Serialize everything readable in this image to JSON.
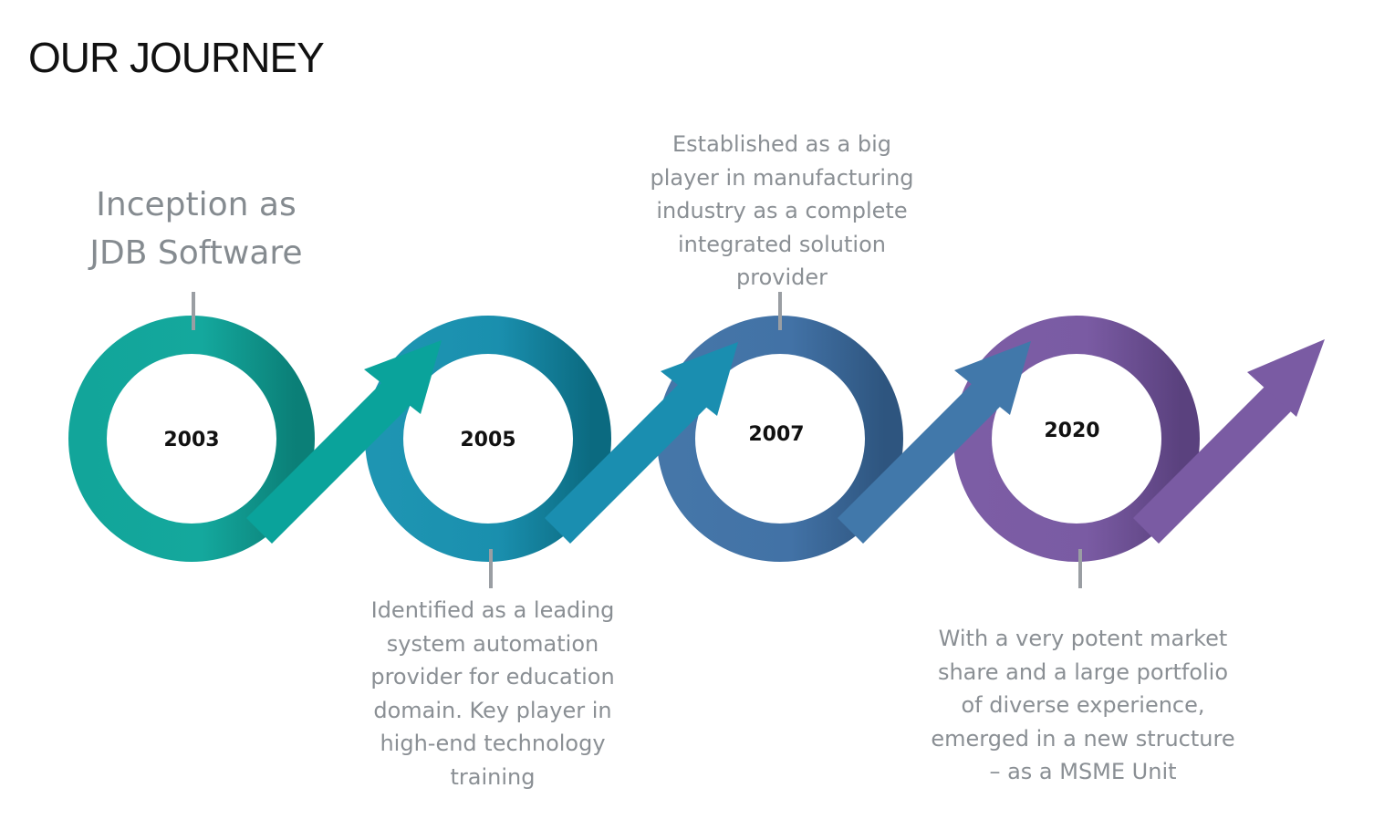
{
  "title": "OUR JOURNEY",
  "milestones": [
    {
      "year": "2003",
      "lines": [
        "Inception as",
        "JDB Software"
      ],
      "color": "#12A59A",
      "shade": "#0B7F77"
    },
    {
      "year": "2005",
      "lines": [
        "Identified as a leading",
        "system automation",
        "provider for education",
        "domain. Key player in",
        "high-end technology",
        "training"
      ],
      "color": "#1D8FAF",
      "shade": "#0C6E86"
    },
    {
      "year": "2007",
      "lines": [
        "Established as a big",
        "player in manufacturing",
        "industry as a complete",
        "integrated solution",
        "provider"
      ],
      "color": "#4272A6",
      "shade": "#2F5A86"
    },
    {
      "year": "2020",
      "lines": [
        "With a very potent market",
        "share and a large portfolio",
        "of diverse experience,",
        "emerged in a new structure",
        "– as a MSME Unit"
      ],
      "color": "#7A5BA3",
      "shade": "#5E4583"
    }
  ],
  "colors": {
    "connector": "#9a9ea3",
    "arrow_teal": "#0AA39B",
    "arrow_blue": "#1A8EB0",
    "arrow_steel": "#4178AA",
    "arrow_purple": "#7A5BA3"
  }
}
